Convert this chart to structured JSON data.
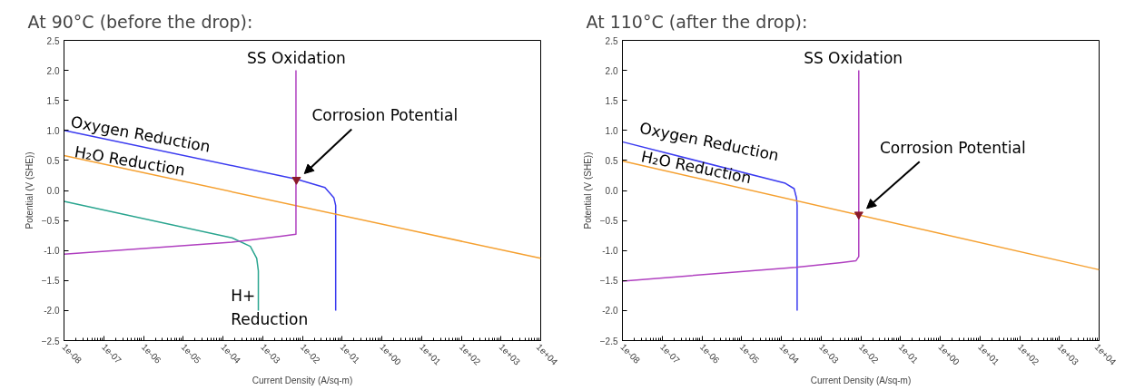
{
  "chart_data": [
    {
      "type": "line",
      "title": "At 90°C (before the drop):",
      "xlabel": "Current Density (A/sq-m)",
      "ylabel": "Potential (V (SHE))",
      "log": "x",
      "grid": false,
      "xlim": [
        1e-08,
        10000.0
      ],
      "ylim": [
        -2.5,
        2.5
      ],
      "xticks": [
        {
          "value": 1e-08,
          "label": "1e-08"
        },
        {
          "value": 1e-07,
          "label": "1e-07"
        },
        {
          "value": 1e-06,
          "label": "1e-06"
        },
        {
          "value": 1e-05,
          "label": "1e-05"
        },
        {
          "value": 0.0001,
          "label": "1e-04"
        },
        {
          "value": 0.001,
          "label": "1e-03"
        },
        {
          "value": 0.01,
          "label": "1e-02"
        },
        {
          "value": 0.1,
          "label": "1e-01"
        },
        {
          "value": 1,
          "label": "1e+00"
        },
        {
          "value": 10,
          "label": "1e+01"
        },
        {
          "value": 100,
          "label": "1e+02"
        },
        {
          "value": 1000,
          "label": "1e+03"
        },
        {
          "value": 10000,
          "label": "1e+04"
        }
      ],
      "yticks": [
        -2.5,
        {
          "value": -2,
          "label": "-2.0"
        },
        -1.5,
        {
          "value": -1,
          "label": "-1.0"
        },
        -0.5,
        {
          "value": 0,
          "label": "0.0"
        },
        0.5,
        {
          "value": 1,
          "label": "1.0"
        },
        1.5,
        {
          "value": 2,
          "label": "2.0"
        },
        2.5
      ],
      "series": [
        {
          "color": "#3b3bf0",
          "x": [
            1e-08,
            0.0071,
            0.037,
            0.062,
            0.069,
            0.069
          ],
          "values": [
            1.0,
            0.19,
            0.05,
            -0.12,
            -0.25,
            -2.0
          ]
        },
        {
          "color": "#f5a030",
          "x": [
            1e-08,
            10000.0
          ],
          "values": [
            0.58,
            -1.13
          ]
        },
        {
          "color": "#2aa58f",
          "x": [
            1e-08,
            0.00017,
            0.00049,
            0.00071,
            0.00078,
            0.00078
          ],
          "values": [
            -0.18,
            -0.79,
            -0.93,
            -1.13,
            -1.34,
            -2.0
          ]
        },
        {
          "color": "#b040c0",
          "x": [
            1e-08,
            0.00017,
            0.0032,
            0.0069,
            0.0069
          ],
          "values": [
            -1.06,
            -0.86,
            -0.76,
            -0.73,
            2.0
          ]
        },
        {
          "type": "scatter",
          "marker": "triangle",
          "color": "#8b1a2a",
          "x": [
            0.0071
          ],
          "values": [
            0.18
          ]
        }
      ],
      "annotations": [
        "Oxygen Reduction",
        "H₂O Reduction",
        "SS Oxidation",
        "Corrosion Potential",
        "H+\nReduction"
      ]
    },
    {
      "type": "line",
      "title": "At 110°C (after the drop):",
      "xlabel": "Current Density (A/sq-m)",
      "ylabel": "Potential (V (SHE))",
      "log": "x",
      "grid": false,
      "xlim": [
        1e-08,
        10000.0
      ],
      "ylim": [
        -2.5,
        2.5
      ],
      "xticks": [
        {
          "value": 1e-08,
          "label": "1e-08"
        },
        {
          "value": 1e-07,
          "label": "1e-07"
        },
        {
          "value": 1e-06,
          "label": "1e-06"
        },
        {
          "value": 1e-05,
          "label": "1e-05"
        },
        {
          "value": 0.0001,
          "label": "1e-04"
        },
        {
          "value": 0.001,
          "label": "1e-03"
        },
        {
          "value": 0.01,
          "label": "1e-02"
        },
        {
          "value": 0.1,
          "label": "1e-01"
        },
        {
          "value": 1,
          "label": "1e+00"
        },
        {
          "value": 10,
          "label": "1e+01"
        },
        {
          "value": 100,
          "label": "1e+02"
        },
        {
          "value": 1000,
          "label": "1e+03"
        },
        {
          "value": 10000,
          "label": "1e+04"
        }
      ],
      "yticks": [
        -2.5,
        {
          "value": -2,
          "label": "-2.0"
        },
        -1.5,
        {
          "value": -1,
          "label": "-1.0"
        },
        -0.5,
        {
          "value": 0,
          "label": "0.0"
        },
        0.5,
        {
          "value": 1,
          "label": "1.0"
        },
        1.5,
        {
          "value": 2,
          "label": "2.0"
        },
        2.5
      ],
      "series": [
        {
          "color": "#3b3bf0",
          "x": [
            1e-08,
            0.000126,
            0.00021,
            0.00024,
            0.00025,
            0.00025
          ],
          "values": [
            0.81,
            0.12,
            0.03,
            -0.12,
            -0.25,
            -2.0
          ]
        },
        {
          "color": "#f5a030",
          "x": [
            1e-08,
            10000.0
          ],
          "values": [
            0.49,
            -1.32
          ]
        },
        {
          "color": "#b040c0",
          "x": [
            1e-08,
            0.00023,
            0.0033,
            0.0076,
            0.0089,
            0.0089
          ],
          "values": [
            -1.51,
            -1.28,
            -1.2,
            -1.17,
            -1.1,
            2.0
          ]
        },
        {
          "type": "scatter",
          "marker": "triangle",
          "color": "#8b1a2a",
          "x": [
            0.0089
          ],
          "values": [
            -0.4
          ]
        }
      ],
      "annotations": [
        "Oxygen Reduction",
        "H₂O Reduction",
        "SS Oxidation",
        "Corrosion Potential"
      ]
    }
  ]
}
